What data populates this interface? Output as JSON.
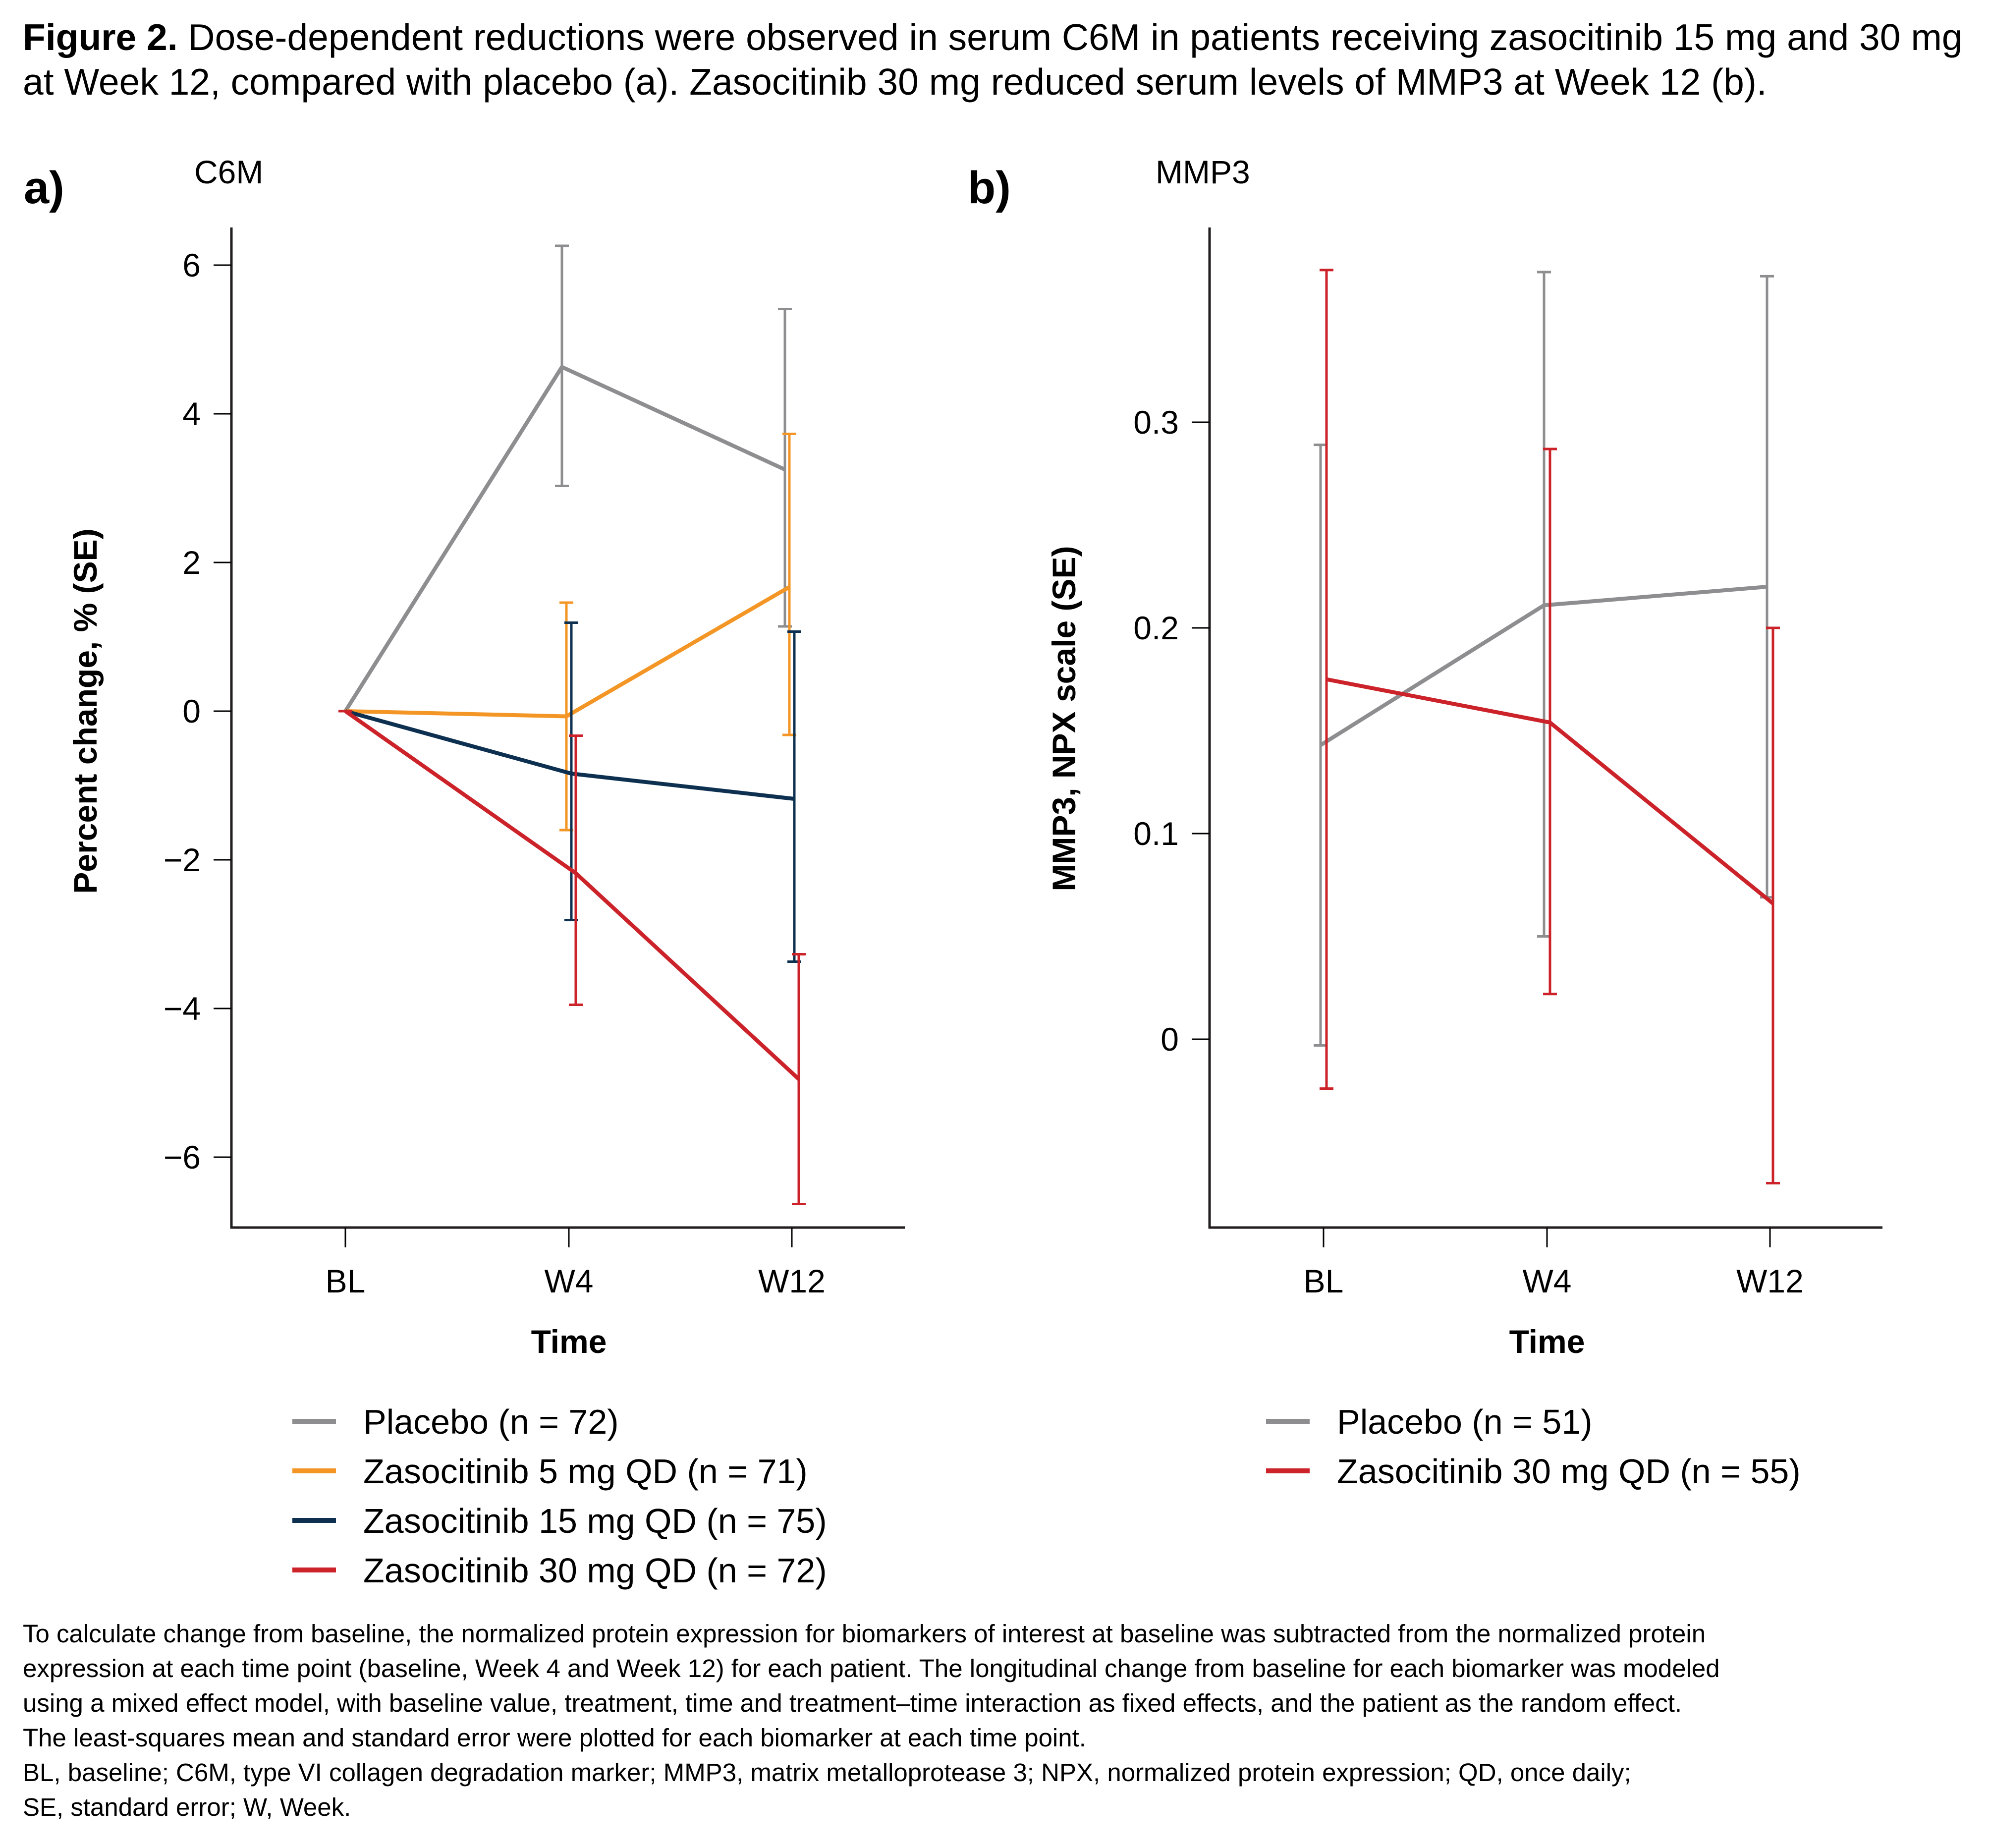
{
  "figure": {
    "title_bold": "Figure 2.",
    "title_line1": " Dose-dependent reductions were observed in serum C6M in patients receiving zasocitinib 15 mg and 30 mg",
    "title_line2": "at Week 12, compared with placebo (a). Zasocitinib 30 mg reduced serum levels of MMP3 at Week 12 (b).",
    "footnote_lines": [
      "To calculate change from baseline, the normalized protein expression for biomarkers of interest at baseline was subtracted from the normalized protein",
      "expression at each time point (baseline, Week 4 and Week 12) for each patient. The longitudinal change from baseline for each biomarker was modeled",
      "using a mixed effect model, with baseline value, treatment, time and treatment–time interaction as fixed effects, and the patient as the random effect.",
      "The least-squares mean and standard error were plotted for each biomarker at each time point.",
      "BL, baseline; C6M, type VI collagen degradation marker; MMP3, matrix metalloprotease 3; NPX, normalized protein expression; QD, once daily;",
      "SE, standard error; W, Week."
    ]
  },
  "chart_data": [
    {
      "type": "line",
      "panel_label": "a)",
      "title": "C6M",
      "xlabel": "Time",
      "ylabel": "Percent change, % (SE)",
      "categories": [
        "BL",
        "W4",
        "W12"
      ],
      "ylim": [
        -7.0,
        6.5
      ],
      "yticks": [
        -6,
        -4,
        -2,
        0,
        2,
        4,
        6
      ],
      "ytick_labels": [
        "−6",
        "−4",
        "−2",
        "0",
        "2",
        "4",
        "6"
      ],
      "grid": false,
      "legend_position": "bottom",
      "error_bars": "SE",
      "series": [
        {
          "name": "Placebo (n = 72)",
          "color": "#8e8e90",
          "values": [
            0,
            4.63,
            3.25
          ],
          "err_low": [
            0,
            3.03,
            1.14
          ],
          "err_high": [
            0,
            6.26,
            5.41
          ]
        },
        {
          "name": "Zasocitinib 5 mg QD (n = 71)",
          "color": "#f39626",
          "values": [
            0,
            -0.07,
            1.67
          ],
          "err_low": [
            0,
            -1.6,
            -0.32
          ],
          "err_high": [
            0,
            1.46,
            3.73
          ]
        },
        {
          "name": "Zasocitinib 15 mg QD (n = 75)",
          "color": "#0d3050",
          "values": [
            0,
            -0.84,
            -1.18
          ],
          "err_low": [
            0,
            -2.81,
            -3.37
          ],
          "err_high": [
            0,
            1.19,
            1.07
          ]
        },
        {
          "name": "Zasocitinib 30 mg QD (n = 72)",
          "color": "#cc2229",
          "values": [
            0,
            -2.18,
            -4.95
          ],
          "err_low": [
            0,
            -3.95,
            -6.63
          ],
          "err_high": [
            0,
            -0.33,
            -3.27
          ]
        }
      ]
    },
    {
      "type": "line",
      "panel_label": "b)",
      "title": "MMP3",
      "xlabel": "Time",
      "ylabel": "MMP3, NPX scale (SE)",
      "categories": [
        "BL",
        "W4",
        "W12"
      ],
      "ylim": [
        -0.091,
        0.355
      ],
      "yticks": [
        0,
        0.1,
        0.2,
        0.3
      ],
      "ytick_labels": [
        "0",
        "0.1",
        "0.2",
        "0.3"
      ],
      "grid": false,
      "legend_position": "bottom",
      "error_bars": "SE",
      "series": [
        {
          "name": "Placebo (n = 51)",
          "color": "#8e8e90",
          "values": [
            0.143,
            0.211,
            0.22
          ],
          "err_low": [
            -0.003,
            0.05,
            0.069
          ],
          "err_high": [
            0.289,
            0.373,
            0.371
          ]
        },
        {
          "name": "Zasocitinib 30 mg QD (n = 55)",
          "color": "#cc2229",
          "values": [
            0.175,
            0.154,
            0.066
          ],
          "err_low": [
            -0.024,
            0.022,
            -0.07
          ],
          "err_high": [
            0.374,
            0.287,
            0.2
          ]
        }
      ]
    }
  ]
}
